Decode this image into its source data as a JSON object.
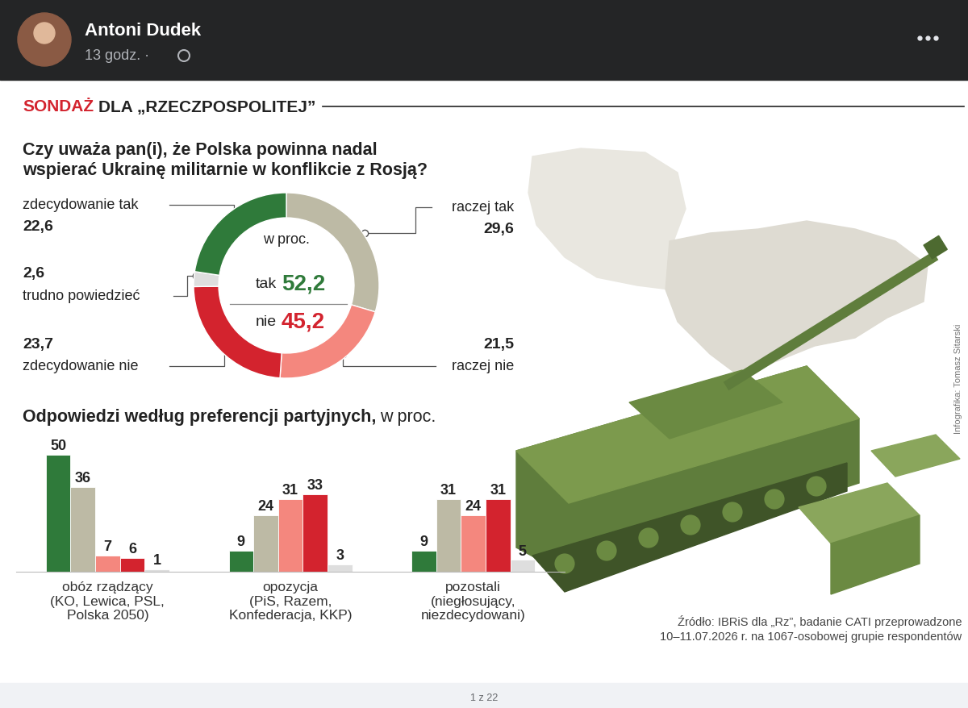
{
  "post": {
    "author": "Antoni Dudek",
    "time": "13 godz. ·",
    "page": "1 z 22"
  },
  "header": [
    "SONDAŻ",
    "DLA „RZECZPOSPOLITEJ”"
  ],
  "chart_data": [
    {
      "type": "pie",
      "title": "Czy uważa pan(i), że Polska powinna nadal\nwspierać Ukrainę militarnie w konflikcie z Rosją?",
      "subtitle": "w proc.",
      "categories": [
        "raczej tak",
        "raczej nie",
        "zdecydowanie nie",
        "trudno powiedzieć",
        "zdecydowanie tak"
      ],
      "values": [
        29.6,
        21.5,
        23.7,
        2.6,
        22.6
      ],
      "value_labels": [
        "29,6",
        "21,5",
        "23,7",
        "2,6",
        "22,6"
      ],
      "colors": [
        "#bdbaa5",
        "#f4877e",
        "#d3232e",
        "#dedede",
        "#2f7a3a"
      ],
      "data_labels": true,
      "totals": [
        {
          "label": "tak",
          "value": 52.2,
          "value_label": "52,2",
          "color": "#2f7a3a"
        },
        {
          "label": "nie",
          "value": 45.2,
          "value_label": "45,2",
          "color": "#d3232e"
        }
      ]
    },
    {
      "type": "bar",
      "title": "Odpowiedzi według preferencji partyjnych,",
      "subtitle": "w proc.",
      "categories": [
        "obóz rządzący\n(KO, Lewica, PSL,\nPolska 2050)",
        "opozycja\n(PiS, Razem,\nKonfederacja, KKP)",
        "pozostali\n(niegłosujący,\nniezdecydowani)"
      ],
      "series": [
        {
          "color": "#2f7a3a",
          "values": [
            50,
            9,
            9
          ]
        },
        {
          "color": "#bdbaa5",
          "values": [
            36,
            24,
            31
          ]
        },
        {
          "color": "#f4877e",
          "values": [
            7,
            31,
            24
          ]
        },
        {
          "color": "#d3232e",
          "values": [
            6,
            33,
            31
          ]
        },
        {
          "color": "#dedede",
          "values": [
            1,
            3,
            5
          ]
        }
      ],
      "ylim": [
        0,
        55
      ],
      "data_labels": true,
      "tick_labels": "x",
      "grid": false
    }
  ],
  "source": "Źródło: IBRiS dla „Rz”, badanie CATI przeprowadzone\n10–11.07.2026 r. na 1067-osobowej grupie respondentów",
  "credit": "Infografika: Tomasz Sitarski"
}
